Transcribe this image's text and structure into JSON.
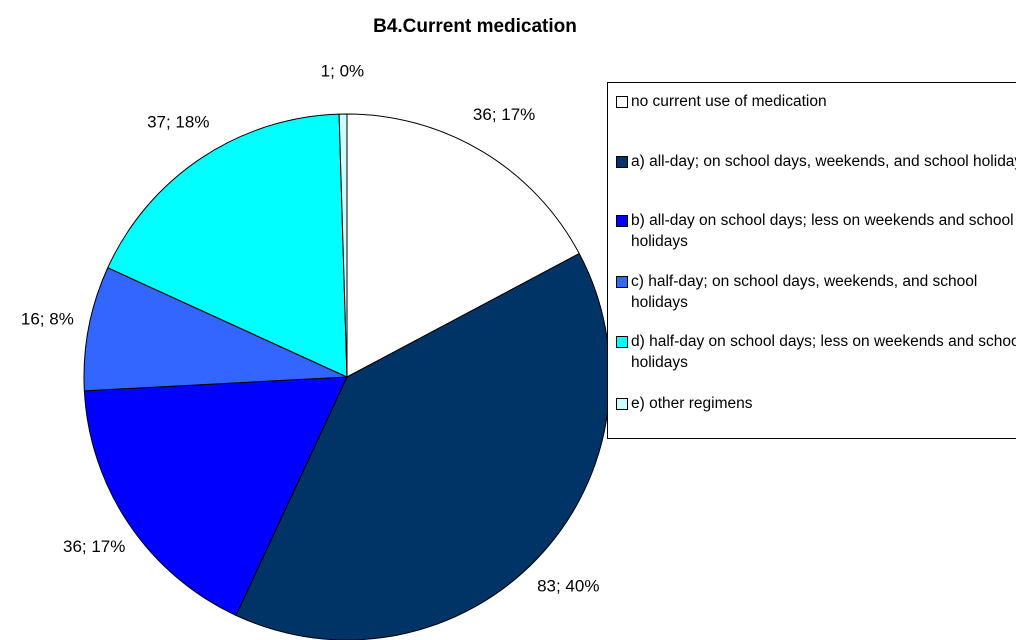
{
  "chart_data": {
    "type": "pie",
    "title": "B4.Current medication",
    "categories": [
      "no current use of medication",
      "a) all-day; on school days, weekends, and school holidays",
      "b) all-day on school days; less on weekends and school holidays",
      "c) half-day; on school days, weekends, and school holidays",
      "d) half-day on school days; less on weekends and school holidays",
      "e) other regimens"
    ],
    "values": [
      36,
      83,
      36,
      16,
      37,
      1
    ],
    "value_labels": [
      "36; 17%",
      "83; 40%",
      "36; 17%",
      "16; 8%",
      "37; 18%",
      "1; 0%"
    ],
    "colors": [
      "#ffffff",
      "#003366",
      "#0000ff",
      "#3366ff",
      "#00ffff",
      "#ccffff"
    ],
    "legend": "right"
  }
}
